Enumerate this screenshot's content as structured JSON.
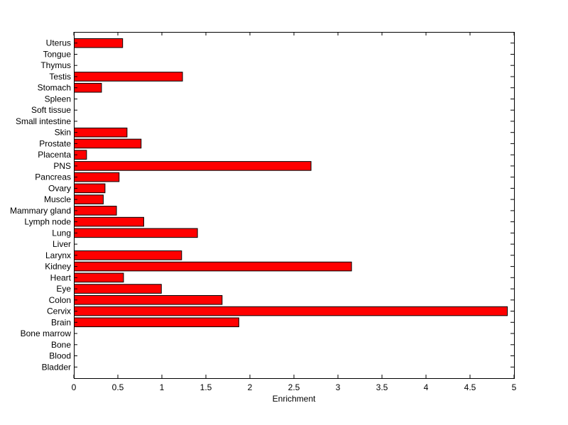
{
  "chart_data": {
    "type": "bar",
    "orientation": "horizontal",
    "title": "",
    "xlabel": "Enrichment",
    "ylabel": "",
    "xlim": [
      0,
      5
    ],
    "x_ticks": [
      "0",
      "0.5",
      "1",
      "1.5",
      "2",
      "2.5",
      "3",
      "3.5",
      "4",
      "4.5",
      "5"
    ],
    "grid": false,
    "bar_color": "#ff0000",
    "edge_color": "#000000",
    "categories": [
      "Bladder",
      "Blood",
      "Bone",
      "Bone marrow",
      "Brain",
      "Cervix",
      "Colon",
      "Eye",
      "Heart",
      "Kidney",
      "Larynx",
      "Liver",
      "Lung",
      "Lymph node",
      "Mammary gland",
      "Muscle",
      "Ovary",
      "Pancreas",
      "PNS",
      "Placenta",
      "Prostate",
      "Skin",
      "Small intestine",
      "Soft tissue",
      "Spleen",
      "Stomach",
      "Testis",
      "Thymus",
      "Tongue",
      "Uterus"
    ],
    "values": [
      0,
      0,
      0,
      0,
      1.87,
      4.92,
      1.68,
      0.99,
      0.56,
      3.15,
      1.22,
      0,
      1.4,
      0.79,
      0.48,
      0.33,
      0.35,
      0.51,
      2.69,
      0.14,
      0.76,
      0.6,
      0,
      0,
      0,
      0.31,
      1.23,
      0,
      0,
      0.55
    ]
  }
}
